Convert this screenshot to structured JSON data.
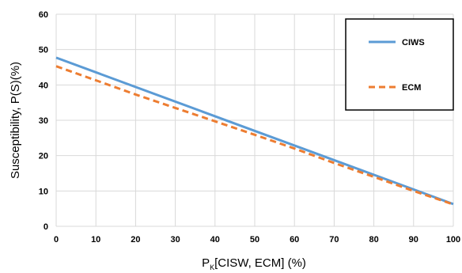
{
  "chart_data": {
    "type": "line",
    "xlabel": {
      "prefix": "P",
      "subscript": "K",
      "rest": "[CISW, ECM] (%)"
    },
    "ylabel": "Susceptibility, P(S)(%)",
    "xlim": [
      0,
      100
    ],
    "ylim": [
      0,
      60
    ],
    "x_ticks": [
      "0",
      "10",
      "20",
      "30",
      "40",
      "50",
      "60",
      "70",
      "80",
      "90",
      "100"
    ],
    "y_ticks": [
      "0",
      "10",
      "20",
      "30",
      "40",
      "50",
      "60"
    ],
    "grid": true,
    "legend_position": "top-right",
    "series": [
      {
        "name": "CIWS",
        "style": "solid",
        "color": "#5B9BD5",
        "x": [
          0,
          100
        ],
        "y": [
          47.7,
          6.3
        ]
      },
      {
        "name": "ECM",
        "style": "dashed",
        "color": "#ED7D31",
        "x": [
          0,
          10,
          20,
          30,
          40,
          50,
          60,
          70,
          80,
          90,
          100
        ],
        "y": [
          45.3,
          41.3,
          37.3,
          33.5,
          29.7,
          25.9,
          22.0,
          17.9,
          14.0,
          10.0,
          6.2
        ]
      }
    ]
  }
}
